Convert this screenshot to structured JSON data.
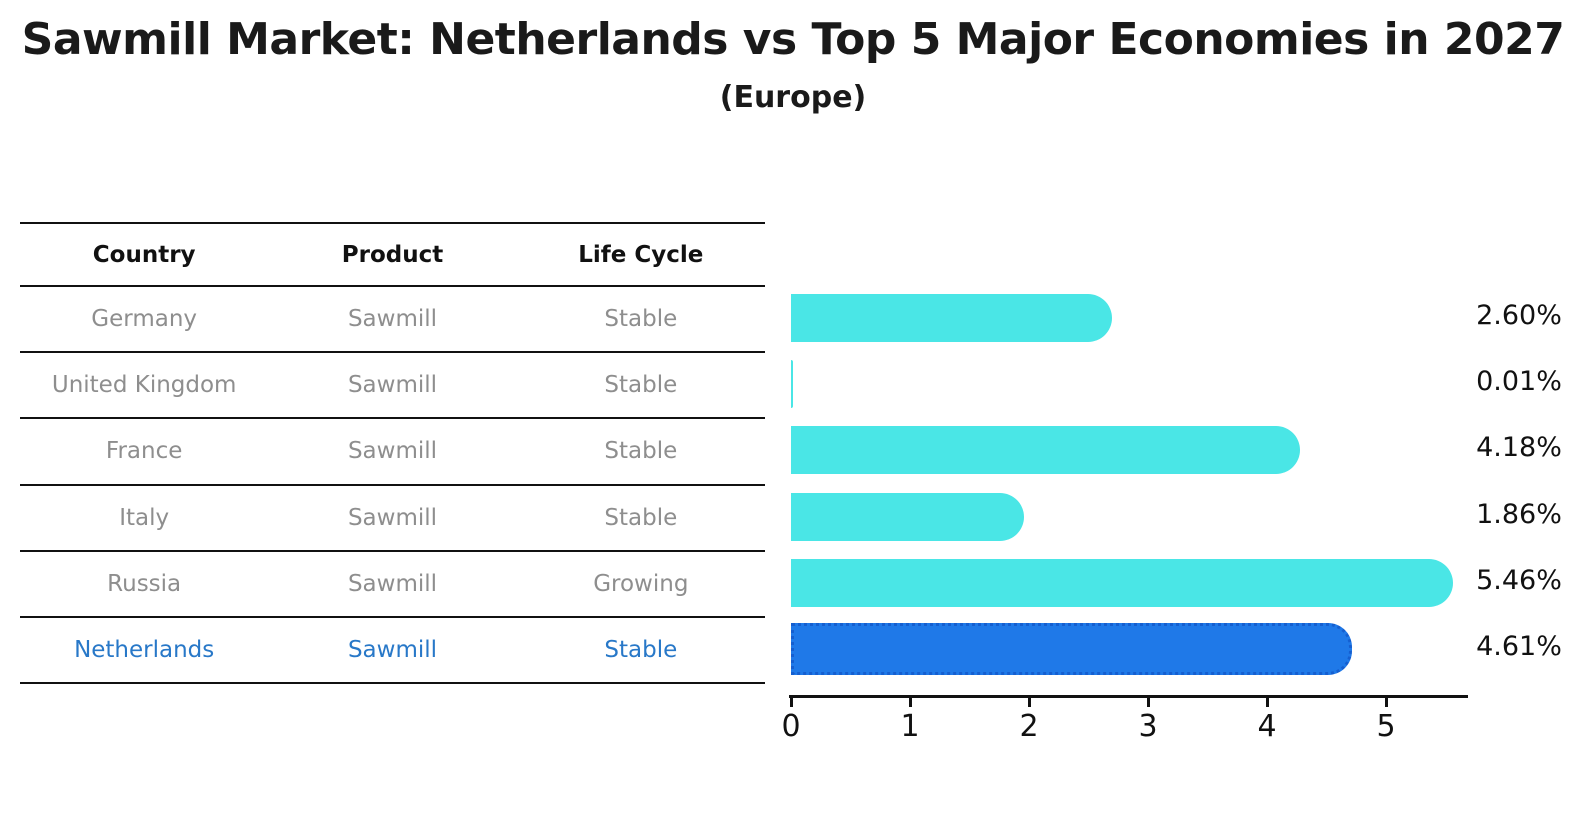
{
  "title": "Sawmill Market: Netherlands vs Top 5 Major Economies in 2027",
  "subtitle": "(Europe)",
  "table": {
    "columns": [
      "Country",
      "Product",
      "Life Cycle"
    ],
    "rows": [
      {
        "country": "Germany",
        "product": "Sawmill",
        "life_cycle": "Stable",
        "highlight": false
      },
      {
        "country": "United Kingdom",
        "product": "Sawmill",
        "life_cycle": "Stable",
        "highlight": false
      },
      {
        "country": "France",
        "product": "Sawmill",
        "life_cycle": "Stable",
        "highlight": false
      },
      {
        "country": "Italy",
        "product": "Sawmill",
        "life_cycle": "Stable",
        "highlight": false
      },
      {
        "country": "Russia",
        "product": "Sawmill",
        "life_cycle": "Growing",
        "highlight": false
      },
      {
        "country": "Netherlands",
        "product": "Sawmill",
        "life_cycle": "Stable",
        "highlight": true
      }
    ]
  },
  "chart_data": {
    "type": "bar",
    "orientation": "horizontal",
    "title": "Sawmill Market: Netherlands vs Top 5 Major Economies in 2027 (Europe)",
    "categories": [
      "Germany",
      "United Kingdom",
      "France",
      "Italy",
      "Russia",
      "Netherlands"
    ],
    "values": [
      2.6,
      0.01,
      4.18,
      1.86,
      5.46,
      4.61
    ],
    "value_labels": [
      "2.60%",
      "0.01%",
      "4.18%",
      "1.86%",
      "5.46%",
      "4.61%"
    ],
    "unit": "percent",
    "xlabel": "",
    "ylabel": "",
    "xlim": [
      0,
      5.7
    ],
    "x_ticks": [
      0,
      1,
      2,
      3,
      4,
      5
    ],
    "grid": false,
    "legend": false,
    "bar_color": "#4AE6E6",
    "highlight_index": 5,
    "highlight_bar_color": "#1F79E8",
    "highlight_border_color": "#155fd0",
    "highlight_text_color": "#2878C8"
  },
  "colors": {
    "text": "#1a1a1a",
    "muted_text": "#8e8e8e",
    "line": "#111111",
    "background": "#ffffff"
  }
}
